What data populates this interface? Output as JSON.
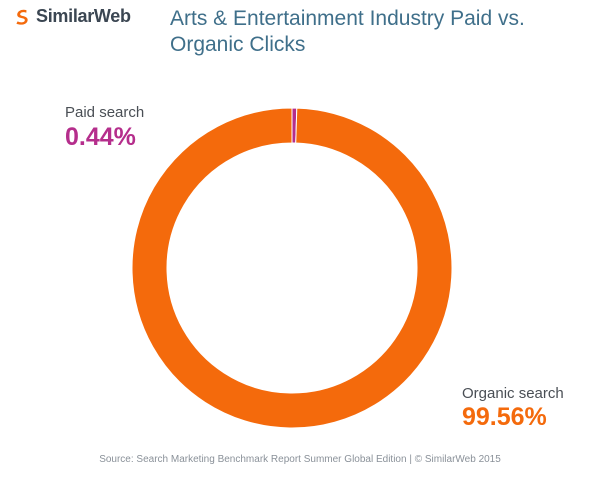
{
  "header": {
    "logo_text": "SimilarWeb",
    "logo_icon": "similarweb-swirl-icon",
    "title": "Arts & Entertainment Industry Paid vs. Organic Clicks"
  },
  "colors": {
    "paid": "#b52e8c",
    "organic": "#f46a0c",
    "title": "#3f6f8a",
    "logo": "#3b4652"
  },
  "chart_data": {
    "type": "pie",
    "style": "donut",
    "title": "Arts & Entertainment Industry Paid vs. Organic Clicks",
    "slices": [
      {
        "label": "Paid search",
        "value": 0.44,
        "display": "0.44%",
        "color": "#b52e8c"
      },
      {
        "label": "Organic search",
        "value": 99.56,
        "display": "99.56%",
        "color": "#f46a0c"
      }
    ]
  },
  "footer": {
    "source": "Source: Search Marketing Benchmark Report Summer Global Edition   |   © SimilarWeb 2015"
  }
}
